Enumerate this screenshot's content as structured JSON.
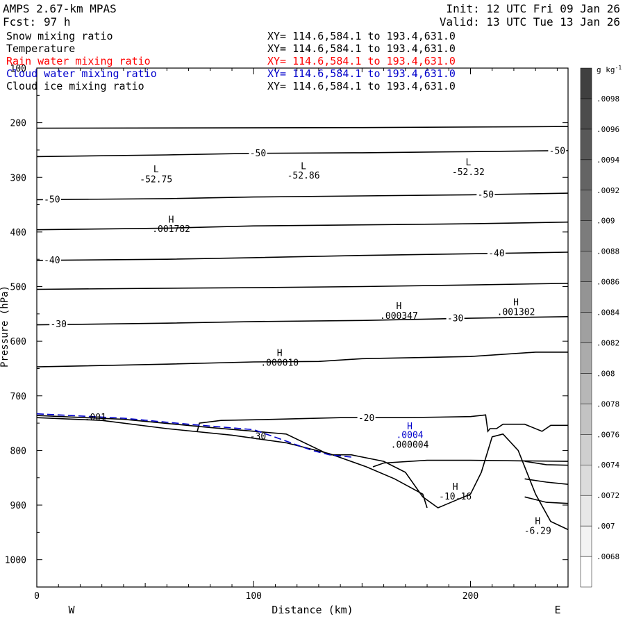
{
  "header": {
    "model": "AMPS 2.67-km MPAS",
    "fcst_label": "Fcst:",
    "fcst_value": "97 h",
    "init": "Init: 12 UTC Fri 09 Jan 26",
    "valid": "Valid: 13 UTC Tue 13 Jan 26"
  },
  "fields": [
    {
      "name": "Snow mixing ratio",
      "xy": "XY= 114.6,584.1 to 193.4,631.0",
      "color": "#000000"
    },
    {
      "name": "Temperature",
      "xy": "XY= 114.6,584.1 to 193.4,631.0",
      "color": "#000000"
    },
    {
      "name": "Rain water mixing ratio",
      "xy": "XY= 114.6,584.1 to 193.4,631.0",
      "color": "#ff0000"
    },
    {
      "name": "Cloud water mixing ratio",
      "xy": "XY= 114.6,584.1 to 193.4,631.0",
      "color": "#0000cc"
    },
    {
      "name": "Cloud ice mixing ratio",
      "xy": "XY= 114.6,584.1 to 193.4,631.0",
      "color": "#000000"
    }
  ],
  "chart_data": {
    "type": "line",
    "xlabel": "Distance (km)",
    "ylabel": "Pressure (hPa)",
    "xlim": [
      0,
      245
    ],
    "ylim": [
      1050,
      100
    ],
    "x_ticks": [
      0,
      100,
      200
    ],
    "y_ticks": [
      100,
      200,
      300,
      400,
      500,
      600,
      700,
      800,
      900,
      1000
    ],
    "x_end_labels": [
      "W",
      "E"
    ],
    "colorbar": {
      "unit_base": "g kg",
      "unit_exp": "-1",
      "levels": [
        ".0068",
        ".007",
        ".0072",
        ".0074",
        ".0076",
        ".0078",
        ".008",
        ".0082",
        ".0084",
        ".0086",
        ".0088",
        ".009",
        ".0092",
        ".0094",
        ".0096",
        ".0098"
      ]
    },
    "series": [
      {
        "points": [
          [
            0,
            210
          ],
          [
            150,
            209
          ],
          [
            245,
            207
          ]
        ]
      },
      {
        "points": [
          [
            0,
            262
          ],
          [
            60,
            259
          ],
          [
            100,
            256
          ],
          [
            150,
            255
          ],
          [
            200,
            253
          ],
          [
            245,
            251
          ]
        ],
        "label": "-50",
        "label_at": [
          [
            102,
            255
          ],
          [
            240,
            251
          ]
        ]
      },
      {
        "points": [
          [
            0,
            341
          ],
          [
            60,
            339
          ],
          [
            100,
            336
          ],
          [
            150,
            334
          ],
          [
            200,
            332
          ],
          [
            245,
            329
          ]
        ],
        "label": "-50",
        "label_at": [
          [
            7,
            340
          ],
          [
            207,
            331
          ]
        ]
      },
      {
        "points": [
          [
            0,
            396
          ],
          [
            60,
            393
          ],
          [
            100,
            389
          ],
          [
            150,
            387
          ],
          [
            200,
            385
          ],
          [
            245,
            382
          ]
        ]
      },
      {
        "points": [
          [
            0,
            452
          ],
          [
            60,
            450
          ],
          [
            100,
            447
          ],
          [
            150,
            443
          ],
          [
            200,
            440
          ],
          [
            245,
            437
          ]
        ],
        "label": "-40",
        "label_at": [
          [
            7,
            451
          ],
          [
            212,
            438
          ]
        ]
      },
      {
        "points": [
          [
            0,
            505
          ],
          [
            60,
            503
          ],
          [
            100,
            502
          ],
          [
            150,
            500
          ],
          [
            200,
            497
          ],
          [
            245,
            494
          ]
        ]
      },
      {
        "points": [
          [
            0,
            570
          ],
          [
            60,
            567
          ],
          [
            100,
            564
          ],
          [
            150,
            562
          ],
          [
            200,
            558
          ],
          [
            245,
            555
          ]
        ],
        "label": "-30",
        "label_at": [
          [
            10,
            568
          ],
          [
            193,
            557
          ]
        ]
      },
      {
        "points": [
          [
            0,
            647
          ],
          [
            60,
            642
          ],
          [
            100,
            638
          ],
          [
            130,
            637
          ],
          [
            150,
            632
          ],
          [
            200,
            628
          ],
          [
            230,
            620
          ],
          [
            245,
            620
          ]
        ]
      },
      {
        "points": [
          [
            74,
            765
          ],
          [
            75,
            750
          ],
          [
            85,
            745
          ],
          [
            110,
            743
          ],
          [
            140,
            740
          ],
          [
            170,
            740
          ],
          [
            200,
            738
          ],
          [
            207,
            735
          ],
          [
            208,
            765
          ],
          [
            209,
            760
          ],
          [
            212,
            760
          ],
          [
            215,
            752
          ],
          [
            225,
            752
          ],
          [
            233,
            765
          ],
          [
            237,
            754
          ],
          [
            245,
            754
          ]
        ],
        "label": "-20",
        "label_at": [
          [
            152,
            740
          ]
        ]
      },
      {
        "points": [
          [
            155,
            830
          ],
          [
            160,
            823
          ],
          [
            180,
            818
          ],
          [
            200,
            818
          ],
          [
            245,
            820
          ]
        ]
      },
      {
        "points": [
          [
            225,
            820
          ],
          [
            235,
            826
          ],
          [
            245,
            827
          ]
        ]
      },
      {
        "points": [
          [
            225,
            852
          ],
          [
            235,
            858
          ],
          [
            245,
            862
          ]
        ]
      },
      {
        "points": [
          [
            225,
            885
          ],
          [
            235,
            895
          ],
          [
            245,
            897
          ]
        ]
      },
      {
        "points": [
          [
            0,
            736
          ],
          [
            40,
            743
          ],
          [
            80,
            758
          ],
          [
            115,
            770
          ],
          [
            135,
            808
          ],
          [
            145,
            808
          ],
          [
            160,
            820
          ],
          [
            170,
            840
          ],
          [
            178,
            885
          ],
          [
            185,
            905
          ],
          [
            200,
            880
          ],
          [
            205,
            840
          ],
          [
            210,
            775
          ],
          [
            215,
            770
          ],
          [
            222,
            800
          ],
          [
            230,
            880
          ],
          [
            237,
            930
          ],
          [
            245,
            945
          ]
        ]
      },
      {
        "points": [
          [
            0,
            740
          ],
          [
            30,
            745
          ],
          [
            60,
            760
          ],
          [
            90,
            772
          ],
          [
            115,
            786
          ],
          [
            135,
            806
          ],
          [
            152,
            830
          ],
          [
            165,
            852
          ],
          [
            178,
            880
          ],
          [
            180,
            905
          ]
        ]
      },
      {
        "points": [
          [
            0,
            733
          ],
          [
            40,
            741
          ],
          [
            70,
            752
          ],
          [
            100,
            762
          ],
          [
            113,
            780
          ],
          [
            127,
            800
          ],
          [
            135,
            808
          ],
          [
            145,
            812
          ]
        ],
        "color": "#0000cc",
        "dash": "10,5"
      }
    ],
    "annotations": [
      {
        "x": 55,
        "y": 291,
        "text": "L",
        "color": "#000000"
      },
      {
        "x": 55,
        "y": 309,
        "text": "-52.75",
        "color": "#000000"
      },
      {
        "x": 123,
        "y": 285,
        "text": "L",
        "color": "#000000"
      },
      {
        "x": 123,
        "y": 302,
        "text": "-52.86",
        "color": "#000000"
      },
      {
        "x": 199,
        "y": 278,
        "text": "L",
        "color": "#000000"
      },
      {
        "x": 199,
        "y": 296,
        "text": "-52.32",
        "color": "#000000"
      },
      {
        "x": 62,
        "y": 383,
        "text": "H",
        "color": "#000000"
      },
      {
        "x": 62,
        "y": 400,
        "text": ".001782",
        "color": "#000000"
      },
      {
        "x": 167,
        "y": 541,
        "text": "H",
        "color": "#000000"
      },
      {
        "x": 167,
        "y": 559,
        "text": ".000347",
        "color": "#000000"
      },
      {
        "x": 221,
        "y": 534,
        "text": "H",
        "color": "#000000"
      },
      {
        "x": 221,
        "y": 552,
        "text": ".001302",
        "color": "#000000"
      },
      {
        "x": 112,
        "y": 627,
        "text": "H",
        "color": "#000000"
      },
      {
        "x": 112,
        "y": 645,
        "text": ".000010",
        "color": "#000000"
      },
      {
        "x": 172,
        "y": 761,
        "text": "H",
        "color": "#0000cc"
      },
      {
        "x": 172,
        "y": 777,
        "text": ".0004",
        "color": "#0000cc"
      },
      {
        "x": 172,
        "y": 795,
        "text": ".000004",
        "color": "#000000"
      },
      {
        "x": 193,
        "y": 872,
        "text": "H",
        "color": "#000000"
      },
      {
        "x": 193,
        "y": 890,
        "text": "-10.16",
        "color": "#000000"
      },
      {
        "x": 231,
        "y": 935,
        "text": "H",
        "color": "#000000"
      },
      {
        "x": 231,
        "y": 953,
        "text": "-6.29",
        "color": "#000000"
      },
      {
        "x": 27,
        "y": 745,
        "text": ".001",
        "color": "#000000"
      },
      {
        "x": 102,
        "y": 780,
        "text": "-30",
        "color": "#000000"
      }
    ]
  }
}
